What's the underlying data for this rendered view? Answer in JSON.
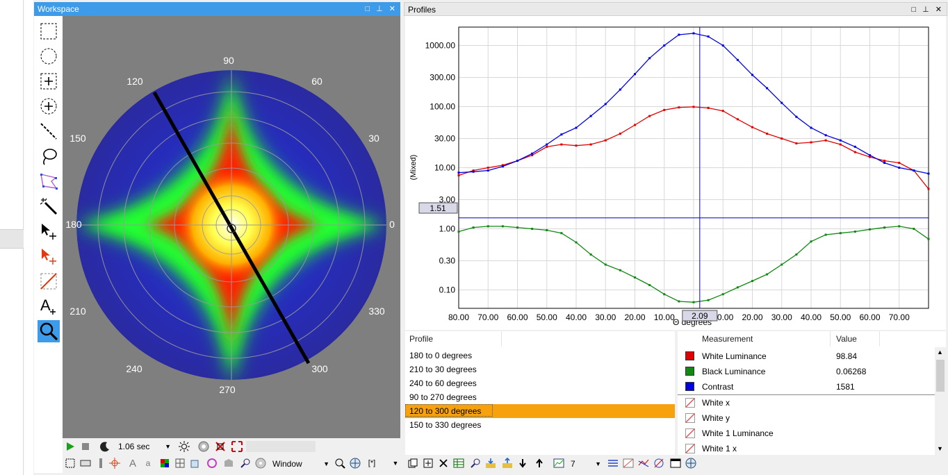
{
  "workspace": {
    "title": "Workspace",
    "angle_labels": [
      "90",
      "60",
      "30",
      "0",
      "330",
      "300",
      "270",
      "240",
      "210",
      "180",
      "150",
      "120"
    ],
    "exposure": "1.06 sec",
    "display_mode": "Window",
    "bracket_label": "[*]"
  },
  "profiles": {
    "title": "Profiles",
    "y_axis_label": "(Mixed)",
    "x_axis_label": "Θ degrees",
    "y_ticks": [
      "1000.00",
      "300.00",
      "100.00",
      "30.00",
      "10.00",
      "3.00",
      "1.00",
      "0.30",
      "0.10"
    ],
    "x_ticks": [
      "80.00",
      "70.00",
      "60.00",
      "50.00",
      "40.00",
      "30.00",
      "20.00",
      "10.00",
      "2.09",
      "0.00",
      "10.00",
      "20.00",
      "30.00",
      "40.00",
      "50.00",
      "60.00",
      "70.00"
    ],
    "cursor_y_value": "1.51",
    "cursor_x_value": "2.09",
    "colors": {
      "white_luminance": "#e00000",
      "black_luminance": "#118811",
      "contrast": "#0000e0"
    }
  },
  "profile_list": {
    "header": "Profile",
    "items": [
      "180 to 0 degrees",
      "210 to 30 degrees",
      "240 to 60 degrees",
      "90 to 270 degrees",
      "120 to 300 degrees",
      "150 to 330 degrees"
    ],
    "selected_index": 4
  },
  "measurements": {
    "header_measurement": "Measurement",
    "header_value": "Value",
    "rows": [
      {
        "name": "White Luminance",
        "value": "98.84",
        "color": "#e00000"
      },
      {
        "name": "Black Luminance",
        "value": "0.06268",
        "color": "#118811"
      },
      {
        "name": "Contrast",
        "value": "1581",
        "color": "#0000e0"
      },
      {
        "name": "White x",
        "value": ""
      },
      {
        "name": "White y",
        "value": ""
      },
      {
        "name": "White 1 Luminance",
        "value": ""
      },
      {
        "name": "White 1 x",
        "value": ""
      }
    ]
  },
  "profile_toolbar": {
    "count": "7"
  },
  "chart_data": {
    "type": "line",
    "title": "",
    "xlabel": "Θ degrees",
    "ylabel": "(Mixed)",
    "yscale": "log",
    "ylim": [
      0.05,
      2000
    ],
    "x": [
      -80,
      -75,
      -70,
      -65,
      -60,
      -55,
      -50,
      -45,
      -40,
      -35,
      -30,
      -25,
      -20,
      -15,
      -10,
      -5,
      0,
      5,
      10,
      15,
      20,
      25,
      30,
      35,
      40,
      45,
      50,
      55,
      60,
      65,
      70,
      75,
      80
    ],
    "series": [
      {
        "name": "White Luminance",
        "values": [
          7.5,
          9,
          10,
          11,
          13,
          16,
          22,
          24,
          23,
          24,
          28,
          36,
          50,
          70,
          88,
          97,
          99,
          95,
          85,
          62,
          46,
          36,
          30,
          25,
          26,
          28,
          24,
          18,
          15,
          13,
          12,
          9,
          4.5
        ]
      },
      {
        "name": "Black Luminance",
        "values": [
          0.9,
          1.05,
          1.1,
          1.1,
          1.05,
          1.0,
          0.95,
          0.85,
          0.6,
          0.38,
          0.26,
          0.21,
          0.16,
          0.12,
          0.085,
          0.065,
          0.063,
          0.068,
          0.085,
          0.11,
          0.14,
          0.18,
          0.26,
          0.38,
          0.62,
          0.8,
          0.85,
          0.9,
          0.98,
          1.05,
          1.1,
          1.0,
          0.68
        ]
      },
      {
        "name": "Contrast",
        "values": [
          8.3,
          8.6,
          9,
          10.5,
          13,
          17,
          24,
          35,
          45,
          70,
          110,
          190,
          340,
          620,
          1000,
          1500,
          1581,
          1400,
          1000,
          580,
          330,
          200,
          115,
          68,
          45,
          34,
          28,
          22,
          16,
          12,
          10,
          9,
          8
        ]
      }
    ]
  }
}
